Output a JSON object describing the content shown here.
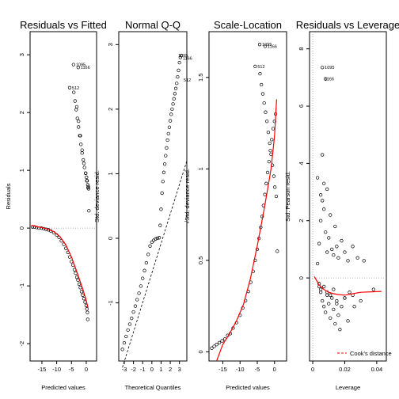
{
  "chart_data": [
    {
      "type": "scatter",
      "title": "Residuals vs Fitted",
      "xlabel": "Predicted values",
      "ylabel": "Residuals",
      "xlim": [
        -19,
        3.5
      ],
      "ylim": [
        -2.3,
        3.4
      ],
      "xticks": [
        -15,
        -10,
        -5,
        0
      ],
      "yticks": [
        -2,
        -1,
        0,
        1,
        2,
        3
      ],
      "grid": false,
      "reference_line": {
        "y": 0,
        "style": "dotted",
        "color": "#999999"
      },
      "smooth_color": "#ff0000",
      "point_labels": [
        {
          "label": "1095",
          "x": -4.3,
          "y": 2.83
        },
        {
          "label": "1166",
          "x": -2.7,
          "y": 2.78
        },
        {
          "label": "512",
          "x": -5.6,
          "y": 2.43
        }
      ],
      "series": [
        {
          "kind": "points",
          "x": [
            -18.2,
            -17.5,
            -16.8,
            -16.0,
            -15.2,
            -14.4,
            -13.6,
            -12.8,
            -12.0,
            -11.0,
            -10.0,
            -9.2,
            -8.4,
            -7.6,
            -6.9,
            -6.2,
            -5.6,
            -5.0,
            -4.5,
            -4.0,
            -3.6,
            -3.2,
            -2.8,
            -2.4,
            -2.0,
            -1.6,
            -1.2,
            -0.8,
            -0.4,
            0.0,
            0.2,
            0.4,
            0.5,
            -4.2,
            -3.8,
            -3.4,
            -3.0,
            -2.6,
            -2.2,
            -1.8,
            -1.4,
            -1.0,
            -0.6,
            -0.2,
            0.1,
            0.3,
            0.5,
            0.7,
            0.8,
            0.9,
            -3.2,
            -2.6,
            -2.0,
            -1.4,
            -0.8,
            -0.2,
            0.2,
            0.6,
            -4.3,
            -2.7,
            -5.6
          ],
          "y": [
            0.02,
            0.02,
            0.01,
            0.0,
            0.0,
            -0.01,
            -0.02,
            -0.03,
            -0.05,
            -0.08,
            -0.12,
            -0.16,
            -0.22,
            -0.28,
            -0.35,
            -0.42,
            -0.5,
            -0.58,
            -0.64,
            -0.72,
            -0.78,
            -0.85,
            -0.9,
            -0.97,
            -1.03,
            -1.1,
            -1.16,
            -1.22,
            -1.28,
            -1.34,
            -1.4,
            -1.46,
            -1.58,
            2.35,
            2.2,
            2.05,
            1.9,
            1.75,
            1.6,
            1.45,
            1.3,
            1.18,
            1.05,
            0.95,
            0.88,
            0.82,
            0.75,
            0.72,
            0.68,
            0.3,
            2.1,
            1.85,
            1.6,
            1.35,
            1.12,
            0.95,
            0.82,
            0.7,
            2.83,
            2.78,
            2.43
          ]
        },
        {
          "kind": "smooth",
          "x": [
            -18.5,
            -17,
            -15,
            -13,
            -11,
            -9,
            -7,
            -5,
            -3,
            -1,
            0,
            0.6
          ],
          "y": [
            0.05,
            0.03,
            0.01,
            -0.02,
            -0.06,
            -0.14,
            -0.28,
            -0.5,
            -0.78,
            -1.08,
            -1.25,
            -1.38
          ]
        }
      ]
    },
    {
      "type": "scatter",
      "title": "Normal Q-Q",
      "xlabel": "Theoretical Quantiles",
      "ylabel": "Std. deviance resid.",
      "xlim": [
        -3.6,
        3.8
      ],
      "ylim": [
        -1.9,
        3.2
      ],
      "xticks": [
        -3,
        -2,
        -1,
        0,
        1,
        2,
        3
      ],
      "yticks": [
        -1,
        0,
        1,
        2,
        3
      ],
      "grid": false,
      "reference_line": {
        "x": [
          -3.2,
          3.8
        ],
        "y": [
          -2.0,
          1.2
        ],
        "style": "dashed",
        "color": "#000000"
      },
      "point_labels": [
        {
          "label": "1095",
          "x": 2.6,
          "y": 2.83
        },
        {
          "label": "1166",
          "x": 3.1,
          "y": 2.79
        },
        {
          "label": "512",
          "x": 3.2,
          "y": 2.45
        }
      ],
      "series": [
        {
          "kind": "points",
          "x": [
            -3.2,
            -3.0,
            -2.8,
            -2.6,
            -2.4,
            -2.2,
            -2.0,
            -1.8,
            -1.6,
            -1.4,
            -1.2,
            -1.0,
            -0.8,
            -0.6,
            -0.4,
            -0.2,
            0.0,
            0.2,
            0.4,
            0.6,
            0.8,
            0.9,
            1.0,
            1.1,
            1.2,
            1.3,
            1.4,
            1.5,
            1.6,
            1.7,
            1.8,
            1.9,
            2.0,
            2.1,
            2.2,
            2.3,
            2.4,
            2.5,
            2.6,
            2.7,
            2.8,
            2.9,
            3.0,
            3.1,
            3.2
          ],
          "y": [
            -1.72,
            -1.62,
            -1.52,
            -1.42,
            -1.33,
            -1.24,
            -1.14,
            -1.05,
            -0.95,
            -0.85,
            -0.74,
            -0.62,
            -0.5,
            -0.38,
            -0.25,
            -0.12,
            -0.06,
            -0.03,
            -0.01,
            0.0,
            0.01,
            0.2,
            0.45,
            0.7,
            0.88,
            1.02,
            1.15,
            1.28,
            1.4,
            1.52,
            1.62,
            1.72,
            1.82,
            1.92,
            2.0,
            2.08,
            2.16,
            2.24,
            2.32,
            2.4,
            2.5,
            2.6,
            2.72,
            2.8,
            2.83
          ]
        }
      ]
    },
    {
      "type": "scatter",
      "title": "Scale-Location",
      "xlabel": "Predicted values",
      "ylabel": "√Std. deviance resid.",
      "xlim": [
        -19,
        3.5
      ],
      "ylim": [
        -0.05,
        1.75
      ],
      "xticks": [
        -15,
        -10,
        -5,
        0
      ],
      "yticks": [
        0.0,
        0.5,
        1.0,
        1.5
      ],
      "grid": false,
      "smooth_color": "#ff0000",
      "point_labels": [
        {
          "label": "1095",
          "x": -4.3,
          "y": 1.68
        },
        {
          "label": "1166",
          "x": -2.7,
          "y": 1.67
        },
        {
          "label": "512",
          "x": -5.6,
          "y": 1.56
        }
      ],
      "series": [
        {
          "kind": "points",
          "x": [
            -18.2,
            -17.5,
            -16.8,
            -16.0,
            -15.2,
            -14.4,
            -13.6,
            -12.8,
            -12.0,
            -11.0,
            -10.0,
            -9.2,
            -8.4,
            -7.6,
            -6.9,
            -6.2,
            -5.6,
            -5.0,
            -4.5,
            -4.0,
            -3.6,
            -3.2,
            -2.8,
            -2.4,
            -2.0,
            -1.6,
            -1.2,
            -0.8,
            -0.4,
            0.0,
            0.3,
            -4.2,
            -3.8,
            -3.4,
            -3.0,
            -2.6,
            -2.2,
            -1.8,
            -1.4,
            -1.0,
            -0.6,
            -0.2,
            0.1,
            0.5,
            0.8,
            -4.3,
            -2.7,
            -5.6
          ],
          "y": [
            0.02,
            0.03,
            0.04,
            0.05,
            0.06,
            0.07,
            0.09,
            0.1,
            0.13,
            0.16,
            0.2,
            0.24,
            0.28,
            0.33,
            0.38,
            0.44,
            0.5,
            0.56,
            0.62,
            0.68,
            0.74,
            0.8,
            0.86,
            0.92,
            0.98,
            1.04,
            1.1,
            1.16,
            1.22,
            1.26,
            1.3,
            1.52,
            1.46,
            1.41,
            1.36,
            1.31,
            1.26,
            1.2,
            1.14,
            1.08,
            1.02,
            0.96,
            0.9,
            0.85,
            0.55,
            1.68,
            1.67,
            1.56
          ]
        },
        {
          "kind": "smooth",
          "x": [
            -16.8,
            -15,
            -13,
            -11,
            -9,
            -7,
            -5,
            -3,
            -1,
            0,
            0.6
          ],
          "y": [
            -0.05,
            0.04,
            0.1,
            0.17,
            0.26,
            0.4,
            0.58,
            0.78,
            1.0,
            1.18,
            1.38
          ]
        }
      ]
    },
    {
      "type": "scatter",
      "title": "Residuals vs Leverage",
      "xlabel": "Leverage",
      "ylabel": "Std. Pearson resid.",
      "xlim": [
        -0.002,
        0.046
      ],
      "ylim": [
        -2.9,
        8.6
      ],
      "xticks": [
        0.0,
        0.02,
        0.04
      ],
      "yticks": [
        0,
        2,
        4,
        6,
        8
      ],
      "grid": false,
      "reference_line": {
        "y": 0,
        "style": "dotted",
        "color": "#999999"
      },
      "smooth_color": "#ff0000",
      "legend": {
        "position": "bottom-right",
        "entries": [
          "Cook's distance"
        ]
      },
      "point_labels": [
        {
          "label": "1095",
          "x": 0.006,
          "y": 7.35
        },
        {
          "label": "1166",
          "x": 0.006,
          "y": 6.95
        }
      ],
      "series": [
        {
          "kind": "points",
          "x": [
            0.003,
            0.004,
            0.005,
            0.006,
            0.007,
            0.008,
            0.009,
            0.01,
            0.011,
            0.012,
            0.013,
            0.014,
            0.015,
            0.016,
            0.018,
            0.02,
            0.022,
            0.025,
            0.028,
            0.032,
            0.004,
            0.005,
            0.006,
            0.007,
            0.008,
            0.009,
            0.01,
            0.011,
            0.012,
            0.013,
            0.014,
            0.015,
            0.016,
            0.018,
            0.02,
            0.022,
            0.025,
            0.004,
            0.005,
            0.007,
            0.009,
            0.011,
            0.013,
            0.015,
            0.017,
            0.02,
            0.023,
            0.026,
            0.03,
            0.038,
            0.006,
            0.006,
            0.008,
            0.003,
            0.005,
            0.007,
            0.009
          ],
          "y": [
            0.5,
            1.2,
            2.0,
            2.7,
            3.3,
            1.6,
            0.9,
            1.4,
            2.2,
            1.0,
            0.8,
            1.8,
            1.1,
            0.7,
            1.3,
            0.9,
            0.6,
            1.1,
            0.7,
            0.6,
            -0.3,
            -0.5,
            -0.8,
            -1.0,
            -1.2,
            -0.6,
            -0.9,
            -1.4,
            -0.7,
            -1.1,
            -1.6,
            -0.8,
            -1.3,
            -1.0,
            -0.7,
            -1.5,
            -0.6,
            -0.2,
            -0.4,
            -0.3,
            -0.5,
            -0.6,
            -0.4,
            -0.9,
            -1.8,
            -0.7,
            -0.5,
            -1.0,
            -0.8,
            -0.4,
            4.3,
            7.35,
            6.95,
            3.5,
            2.9,
            2.4,
            3.1
          ]
        },
        {
          "kind": "smooth",
          "x": [
            0.001,
            0.004,
            0.007,
            0.01,
            0.013,
            0.016,
            0.02,
            0.025,
            0.03,
            0.038,
            0.043
          ],
          "y": [
            0.05,
            -0.25,
            -0.4,
            -0.5,
            -0.55,
            -0.58,
            -0.6,
            -0.55,
            -0.5,
            -0.48,
            -0.47
          ]
        }
      ]
    }
  ]
}
